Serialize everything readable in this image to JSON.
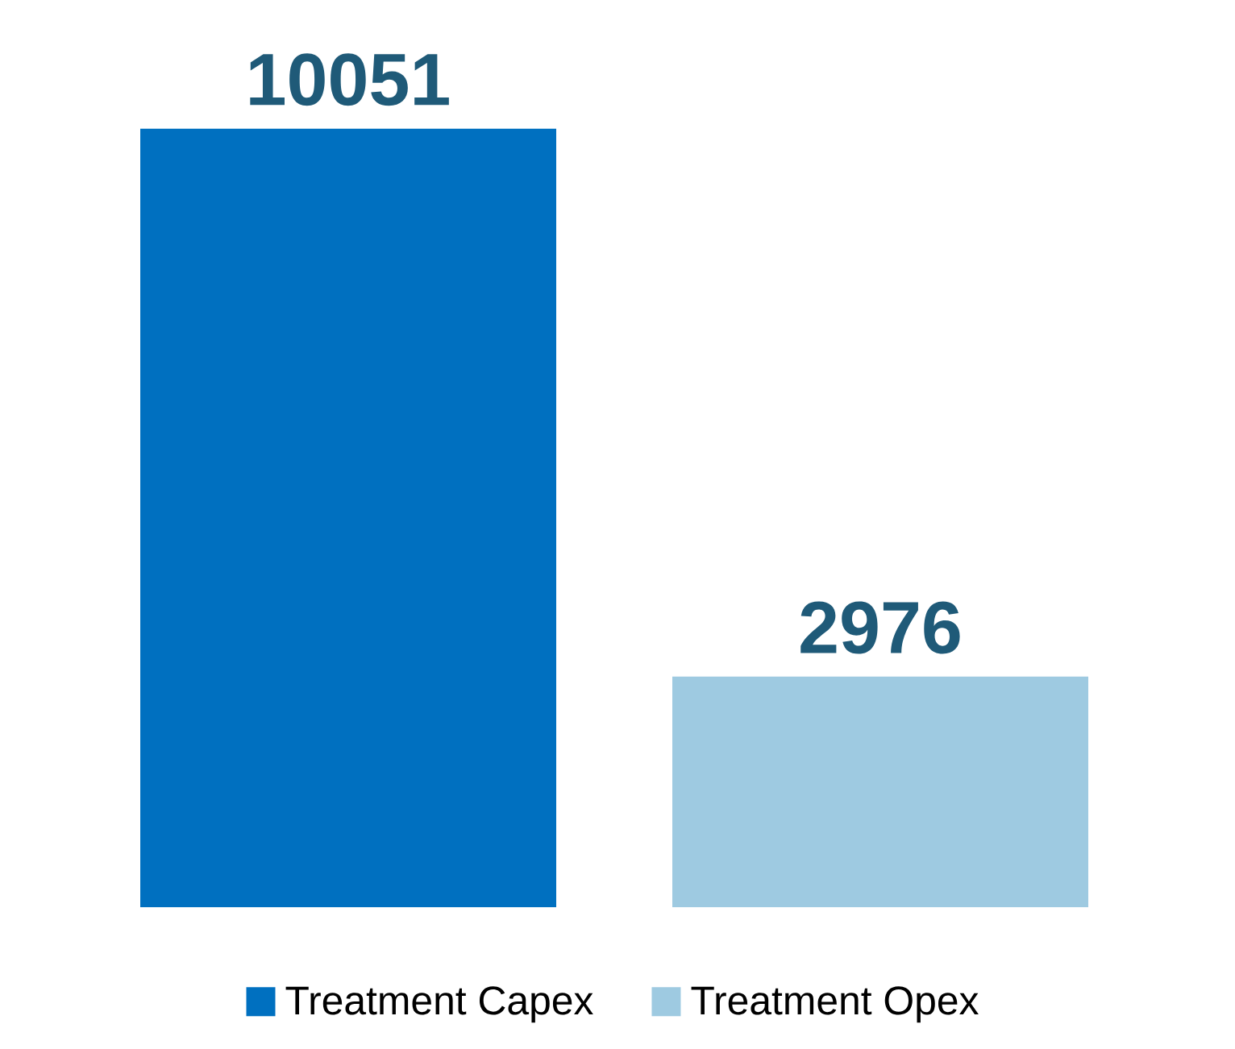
{
  "chart_data": {
    "type": "bar",
    "categories": [
      null
    ],
    "data_labels": true,
    "legend": "bottom",
    "series": [
      {
        "name": "Treatment Capex",
        "color": "#0070c0",
        "values": [
          10051
        ]
      },
      {
        "name": "Treatment Opex",
        "color": "#9ecae1",
        "values": [
          2976
        ]
      }
    ]
  }
}
